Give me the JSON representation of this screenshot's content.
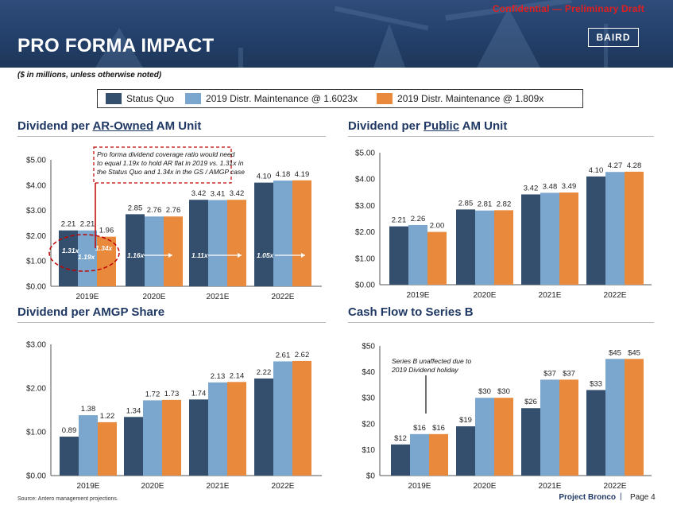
{
  "header": {
    "confidential": "Confidential — Preliminary Draft",
    "title": "PRO FORMA IMPACT",
    "logo": "BAIRD"
  },
  "subtitle": "($ in millions, unless otherwise noted)",
  "legend": [
    {
      "label": "Status Quo",
      "color": "#344f6e"
    },
    {
      "label": "2019 Distr. Maintenance @ 1.6023x",
      "color": "#7ba7ce"
    },
    {
      "label": "2019 Distr. Maintenance @ 1.809x",
      "color": "#e8893c"
    }
  ],
  "colors": {
    "s1": "#344f6e",
    "s2": "#7ba7ce",
    "s3": "#e8893c",
    "accent": "#c00000",
    "title": "#1f3864"
  },
  "sections": {
    "ar": {
      "pre": "Dividend per ",
      "u": "AR-Owned",
      "post": " AM Unit"
    },
    "pub": {
      "pre": "Dividend per ",
      "u": "Public",
      "post": " AM Unit"
    },
    "amgp": {
      "text": "Dividend per AMGP Share"
    },
    "cf": {
      "text": "Cash Flow to Series B"
    }
  },
  "annotations": {
    "ar_box": [
      "Pro forma dividend coverage ratio would need",
      "to equal 1.19x to hold AR flat in 2019 vs. 1.31x in",
      "the Status Quo and 1.34x in the GS / AMGP case"
    ],
    "ar_ratios": [
      "1.31x",
      "1.19x",
      "1.34x",
      "1.16x",
      "1.11x",
      "1.05x"
    ],
    "cf_note": [
      "Series B unaffected due to",
      "2019 Dividend holiday"
    ]
  },
  "chart_data": [
    {
      "id": "ar",
      "type": "bar",
      "title": "Dividend per AR-Owned AM Unit",
      "categories": [
        "2019E",
        "2020E",
        "2021E",
        "2022E"
      ],
      "ylim": [
        0,
        5
      ],
      "ticks": [
        "$0.00",
        "$1.00",
        "$2.00",
        "$3.00",
        "$4.00",
        "$5.00"
      ],
      "series": [
        {
          "name": "Status Quo",
          "values": [
            2.21,
            2.85,
            3.42,
            4.1
          ],
          "labels": [
            "2.21",
            "2.85",
            "3.42",
            "4.10"
          ]
        },
        {
          "name": "2019 Distr. Maintenance @ 1.6023x",
          "values": [
            2.21,
            2.76,
            3.41,
            4.18
          ],
          "labels": [
            "2.21",
            "2.76",
            "3.41",
            "4.18"
          ]
        },
        {
          "name": "2019 Distr. Maintenance @ 1.809x",
          "values": [
            1.96,
            2.76,
            3.42,
            4.19
          ],
          "labels": [
            "1.96",
            "2.76",
            "3.42",
            "4.19"
          ]
        }
      ]
    },
    {
      "id": "pub",
      "type": "bar",
      "title": "Dividend per Public AM Unit",
      "categories": [
        "2019E",
        "2020E",
        "2021E",
        "2022E"
      ],
      "ylim": [
        0,
        5
      ],
      "ticks": [
        "$0.00",
        "$1.00",
        "$2.00",
        "$3.00",
        "$4.00",
        "$5.00"
      ],
      "series": [
        {
          "name": "Status Quo",
          "values": [
            2.21,
            2.85,
            3.42,
            4.1
          ],
          "labels": [
            "2.21",
            "2.85",
            "3.42",
            "4.10"
          ]
        },
        {
          "name": "2019 Distr. Maintenance @ 1.6023x",
          "values": [
            2.26,
            2.81,
            3.48,
            4.27
          ],
          "labels": [
            "2.26",
            "2.81",
            "3.48",
            "4.27"
          ]
        },
        {
          "name": "2019 Distr. Maintenance @ 1.809x",
          "values": [
            2.0,
            2.82,
            3.49,
            4.28
          ],
          "labels": [
            "2.00",
            "2.82",
            "3.49",
            "4.28"
          ]
        }
      ]
    },
    {
      "id": "amgp",
      "type": "bar",
      "title": "Dividend per AMGP Share",
      "categories": [
        "2019E",
        "2020E",
        "2021E",
        "2022E"
      ],
      "ylim": [
        0,
        3
      ],
      "ticks": [
        "$0.00",
        "$1.00",
        "$2.00",
        "$3.00"
      ],
      "series": [
        {
          "name": "Status Quo",
          "values": [
            0.89,
            1.34,
            1.74,
            2.22
          ],
          "labels": [
            "0.89",
            "1.34",
            "1.74",
            "2.22"
          ]
        },
        {
          "name": "2019 Distr. Maintenance @ 1.6023x",
          "values": [
            1.38,
            1.72,
            2.13,
            2.61
          ],
          "labels": [
            "1.38",
            "1.72",
            "2.13",
            "2.61"
          ]
        },
        {
          "name": "2019 Distr. Maintenance @ 1.809x",
          "values": [
            1.22,
            1.73,
            2.14,
            2.62
          ],
          "labels": [
            "1.22",
            "1.73",
            "2.14",
            "2.62"
          ]
        }
      ]
    },
    {
      "id": "cf",
      "type": "bar",
      "title": "Cash Flow to Series B",
      "categories": [
        "2019E",
        "2020E",
        "2021E",
        "2022E"
      ],
      "ylim": [
        0,
        50
      ],
      "ticks": [
        "$0",
        "$10",
        "$20",
        "$30",
        "$40",
        "$50"
      ],
      "series": [
        {
          "name": "Status Quo",
          "values": [
            12,
            19,
            26,
            33
          ],
          "labels": [
            "$12",
            "$19",
            "$26",
            "$33"
          ]
        },
        {
          "name": "2019 Distr. Maintenance @ 1.6023x",
          "values": [
            16,
            30,
            37,
            45
          ],
          "labels": [
            "$16",
            "$30",
            "$37",
            "$45"
          ]
        },
        {
          "name": "2019 Distr. Maintenance @ 1.809x",
          "values": [
            16,
            30,
            37,
            45
          ],
          "labels": [
            "$16",
            "$30",
            "$37",
            "$45"
          ]
        }
      ]
    }
  ],
  "footer": {
    "source": "Source: Antero management projections.",
    "project": "Project Bronco",
    "separator": "|",
    "page": "Page 4"
  }
}
